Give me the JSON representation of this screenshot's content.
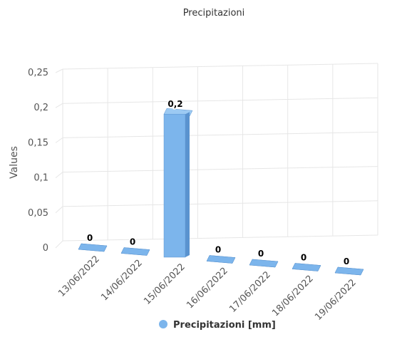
{
  "chart_data": {
    "type": "bar",
    "title": "Precipitazioni",
    "ylabel": "Values",
    "xlabel": "",
    "categories": [
      "13/06/2022",
      "14/06/2022",
      "15/06/2022",
      "16/06/2022",
      "17/06/2022",
      "18/06/2022",
      "19/06/2022"
    ],
    "series": [
      {
        "name": "Precipitazioni [mm]",
        "values": [
          0,
          0,
          0.2,
          0,
          0,
          0,
          0
        ]
      }
    ],
    "ylim": [
      0,
      0.25
    ],
    "yticks": [
      "0",
      "0,05",
      "0,1",
      "0,15",
      "0,2",
      "0,25"
    ],
    "data_labels": [
      "0",
      "0",
      "0,2",
      "0",
      "0",
      "0",
      "0"
    ],
    "grid": true,
    "legend": "bottom",
    "colors": {
      "bar": "#7cb5ec",
      "bar_side": "#5a93cf",
      "bar_top": "#9ccaf3",
      "grid": "#e6e6e6"
    }
  }
}
